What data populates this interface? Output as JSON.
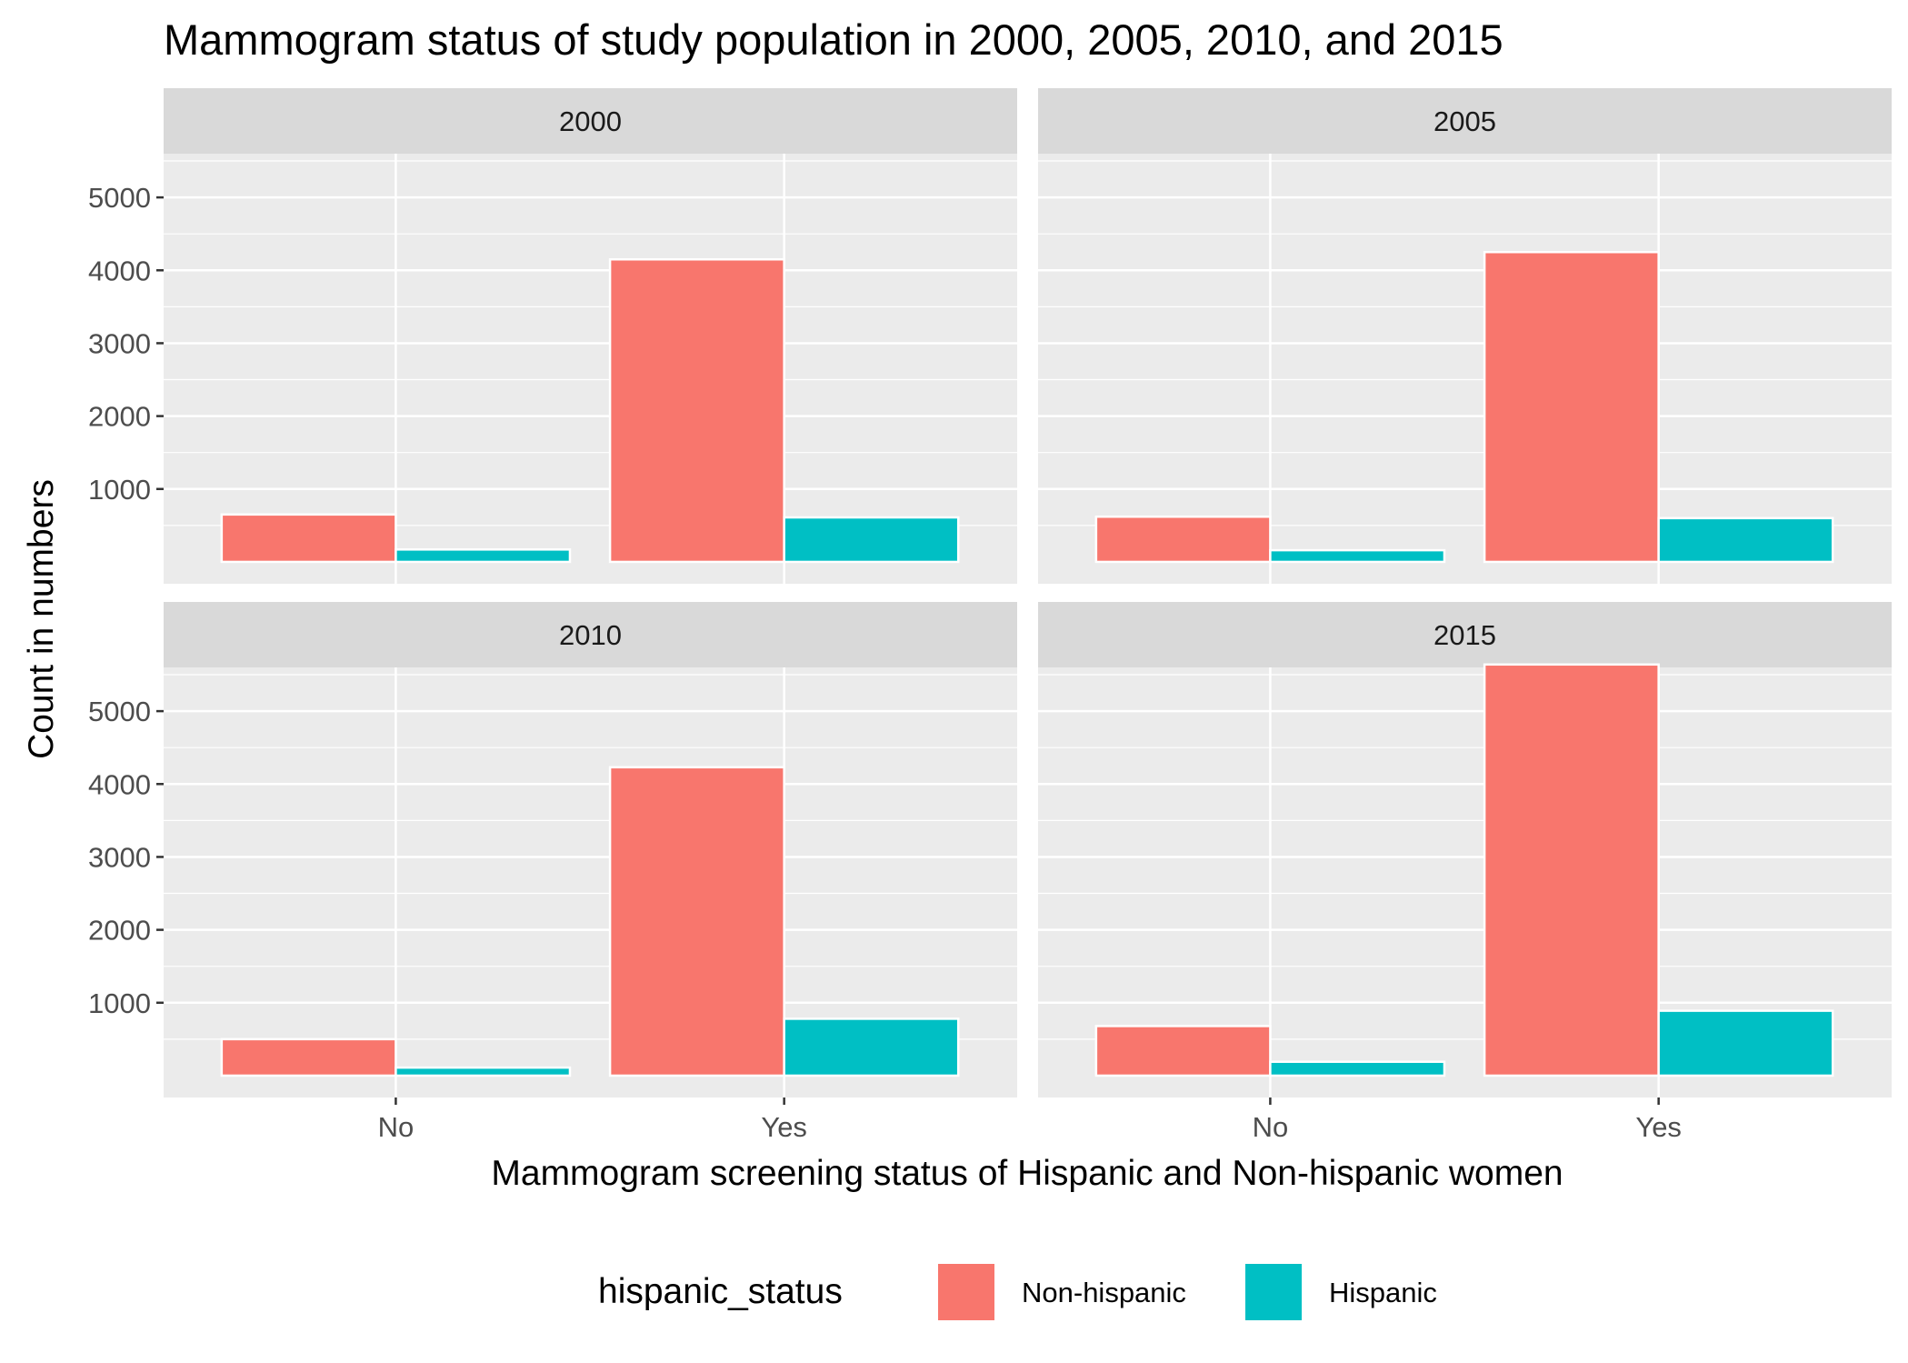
{
  "chart_data": {
    "type": "bar",
    "title": "Mammogram status of study population in 2000, 2005, 2010, and 2015",
    "xlabel": "Mammogram screening status of Hispanic and Non-hispanic women",
    "ylabel": "Count in numbers",
    "categories": [
      "No",
      "Yes"
    ],
    "yticks": [
      "1000",
      "2000",
      "3000",
      "4000",
      "5000"
    ],
    "ylim": [
      -300,
      5600
    ],
    "grid": true,
    "legend": {
      "title": "hispanic_status",
      "placement": "bottom",
      "entries": [
        "Non-hispanic",
        "Hispanic"
      ]
    },
    "colors": {
      "Non-hispanic": "#F8766D",
      "Hispanic": "#00BFC4"
    },
    "panels": [
      {
        "label": "2000",
        "series": [
          {
            "name": "Non-hispanic",
            "values": [
              650,
              4150
            ]
          },
          {
            "name": "Hispanic",
            "values": [
              170,
              610
            ]
          }
        ]
      },
      {
        "label": "2005",
        "series": [
          {
            "name": "Non-hispanic",
            "values": [
              620,
              4250
            ]
          },
          {
            "name": "Hispanic",
            "values": [
              160,
              600
            ]
          }
        ]
      },
      {
        "label": "2010",
        "series": [
          {
            "name": "Non-hispanic",
            "values": [
              500,
              4230
            ]
          },
          {
            "name": "Hispanic",
            "values": [
              110,
              780
            ]
          }
        ]
      },
      {
        "label": "2015",
        "series": [
          {
            "name": "Non-hispanic",
            "values": [
              680,
              5640
            ]
          },
          {
            "name": "Hispanic",
            "values": [
              190,
              890
            ]
          }
        ]
      }
    ]
  }
}
